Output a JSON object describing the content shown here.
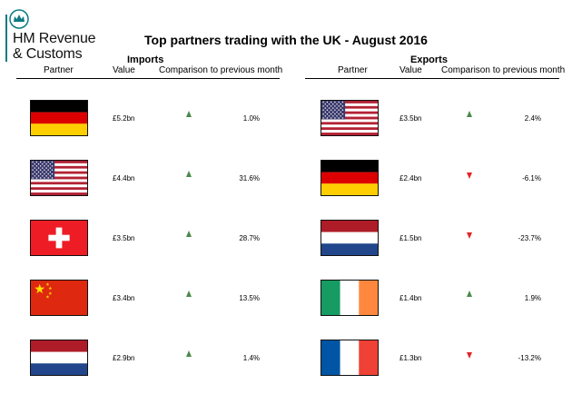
{
  "logo": {
    "line1": "HM Revenue",
    "line2": "& Customs",
    "icon": "crown-crest-icon",
    "color": "#0b7a83"
  },
  "title": "Top partners trading with the UK - August 2016",
  "imports": {
    "heading": "Imports",
    "columns": [
      "Partner",
      "Value",
      "Comparison to previous month"
    ],
    "rows": [
      {
        "flag": "germany-flag-icon",
        "value": "£5.2bn",
        "direction": "up",
        "change": "1.0%"
      },
      {
        "flag": "usa-flag-icon",
        "value": "£4.4bn",
        "direction": "up",
        "change": "31.6%"
      },
      {
        "flag": "switzerland-flag-icon",
        "value": "£3.5bn",
        "direction": "up",
        "change": "28.7%"
      },
      {
        "flag": "china-flag-icon",
        "value": "£3.4bn",
        "direction": "up",
        "change": "13.5%"
      },
      {
        "flag": "netherlands-flag-icon",
        "value": "£2.9bn",
        "direction": "up",
        "change": "1.4%"
      }
    ]
  },
  "exports": {
    "heading": "Exports",
    "columns": [
      "Partner",
      "Value",
      "Comparison to previous month"
    ],
    "rows": [
      {
        "flag": "usa-flag-icon",
        "value": "£3.5bn",
        "direction": "up",
        "change": "2.4%"
      },
      {
        "flag": "germany-flag-icon",
        "value": "£2.4bn",
        "direction": "down",
        "change": "-6.1%"
      },
      {
        "flag": "netherlands-flag-icon",
        "value": "£1.5bn",
        "direction": "down",
        "change": "-23.7%"
      },
      {
        "flag": "ireland-flag-icon",
        "value": "£1.4bn",
        "direction": "up",
        "change": "1.9%"
      },
      {
        "flag": "france-flag-icon",
        "value": "£1.3bn",
        "direction": "down",
        "change": "-13.2%"
      }
    ]
  },
  "colors": {
    "up": "#4a8a4a",
    "down": "#e12626"
  }
}
